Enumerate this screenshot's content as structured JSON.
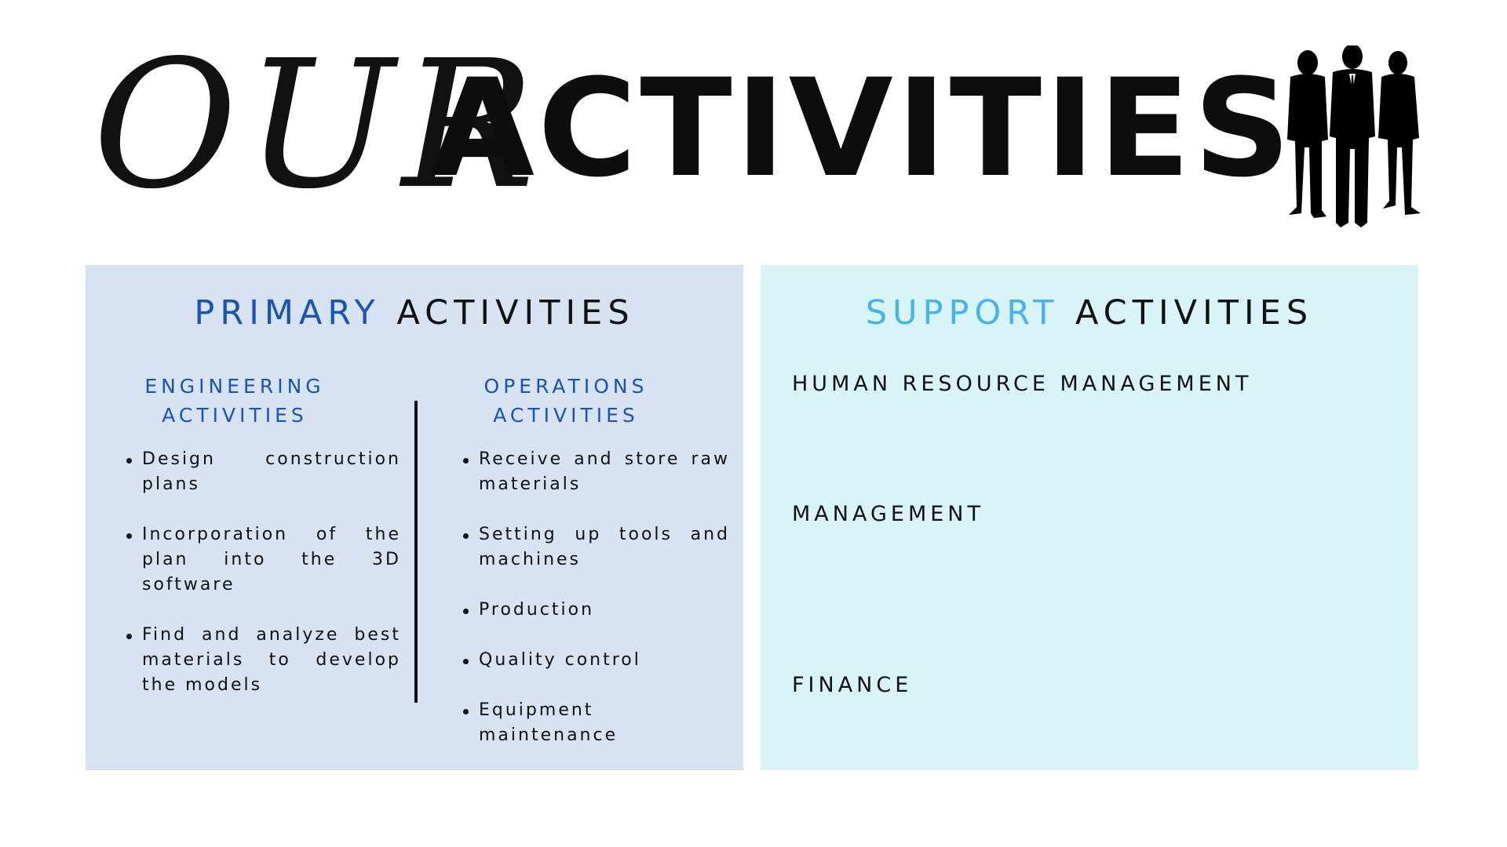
{
  "title": {
    "script_part": "OUR",
    "bold_part": "ACTIVITIES"
  },
  "icons": {
    "decoration": "business-people-silhouette-icon"
  },
  "primary": {
    "heading_highlight": "PRIMARY",
    "heading_rest": "ACTIVITIES",
    "engineering": {
      "heading_line1": "ENGINEERING",
      "heading_line2": "ACTIVITIES",
      "items": [
        "Design construction plans",
        "Incorporation of the plan into the 3D software",
        "Find and analyze best materials to develop the models"
      ]
    },
    "operations": {
      "heading_line1": "OPERATIONS",
      "heading_line2": "ACTIVITIES",
      "items": [
        "Receive and store raw materials",
        "Setting up tools and machines",
        "Production",
        "Quality control",
        "Equipment maintenance"
      ]
    }
  },
  "support": {
    "heading_highlight": "SUPPORT",
    "heading_rest": "ACTIVITIES",
    "items": [
      "HUMAN RESOURCE MANAGEMENT",
      "MANAGEMENT",
      "FINANCE"
    ]
  },
  "colors": {
    "primary_panel_bg": "#d7e3f0",
    "support_panel_bg": "#d8f4f7",
    "primary_accent": "#1753b8",
    "support_accent": "#45b3f2",
    "text": "#111111"
  }
}
